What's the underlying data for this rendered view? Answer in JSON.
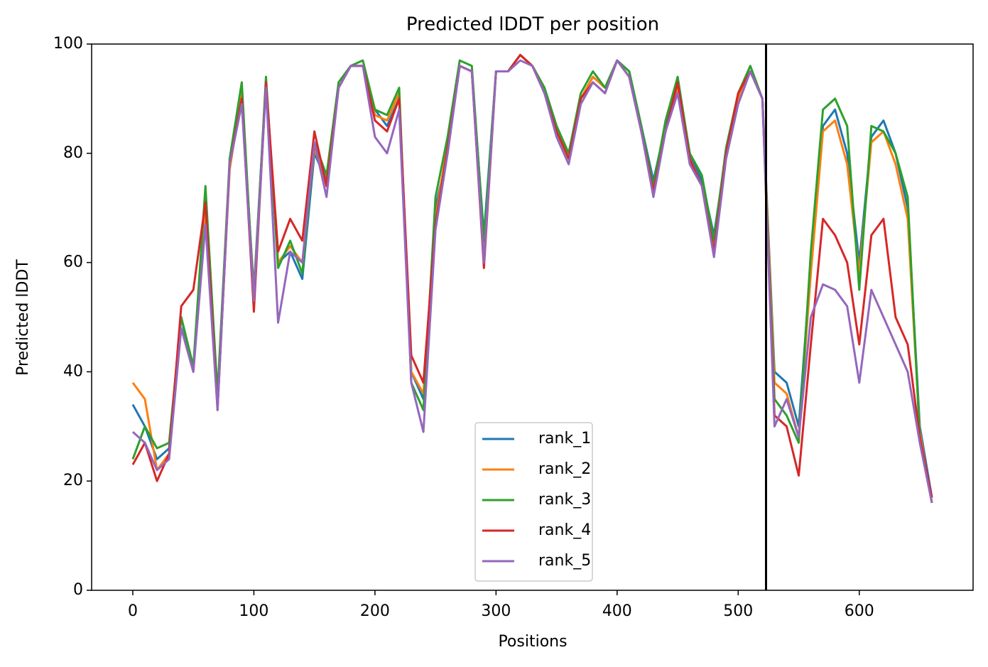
{
  "chart_data": {
    "type": "line",
    "title": "Predicted lDDT per position",
    "xlabel": "Positions",
    "ylabel": "Predicted lDDT",
    "x": [
      0,
      10,
      20,
      30,
      40,
      50,
      60,
      70,
      80,
      90,
      100,
      110,
      120,
      130,
      140,
      150,
      160,
      170,
      180,
      190,
      200,
      210,
      220,
      230,
      240,
      250,
      260,
      270,
      280,
      290,
      300,
      310,
      320,
      330,
      340,
      350,
      360,
      370,
      380,
      390,
      400,
      410,
      420,
      430,
      440,
      450,
      460,
      470,
      480,
      490,
      500,
      510,
      520,
      530,
      540,
      550,
      560,
      570,
      580,
      590,
      600,
      610,
      620,
      630,
      640,
      650,
      660
    ],
    "series": [
      {
        "name": "rank_1",
        "color": "#1f77b4",
        "values": [
          34,
          30,
          24,
          26,
          50,
          40,
          72,
          35,
          78,
          90,
          55,
          93,
          60,
          62,
          57,
          80,
          75,
          92,
          96,
          96,
          88,
          85,
          90,
          40,
          35,
          70,
          80,
          96,
          95,
          65,
          95,
          95,
          98,
          96,
          92,
          85,
          80,
          90,
          94,
          92,
          97,
          95,
          85,
          75,
          85,
          93,
          80,
          75,
          65,
          80,
          90,
          95,
          90,
          40,
          38,
          30,
          60,
          85,
          88,
          80,
          60,
          83,
          86,
          80,
          70,
          30,
          17
        ]
      },
      {
        "name": "rank_2",
        "color": "#ff7f0e",
        "values": [
          38,
          35,
          22,
          25,
          48,
          40,
          70,
          34,
          77,
          91,
          54,
          93,
          60,
          63,
          60,
          81,
          74,
          93,
          96,
          96,
          87,
          86,
          91,
          40,
          36,
          68,
          82,
          96,
          95,
          63,
          95,
          95,
          98,
          96,
          92,
          84,
          80,
          90,
          94,
          92,
          97,
          94,
          84,
          74,
          84,
          92,
          79,
          74,
          63,
          80,
          90,
          95,
          90,
          38,
          36,
          28,
          58,
          84,
          86,
          78,
          58,
          82,
          84,
          78,
          68,
          29,
          16
        ]
      },
      {
        "name": "rank_3",
        "color": "#2ca02c",
        "values": [
          24,
          30,
          26,
          27,
          50,
          41,
          74,
          36,
          79,
          93,
          53,
          94,
          59,
          64,
          58,
          82,
          76,
          93,
          96,
          97,
          88,
          87,
          92,
          38,
          33,
          72,
          83,
          97,
          96,
          64,
          95,
          95,
          98,
          96,
          92,
          85,
          80,
          91,
          95,
          92,
          97,
          95,
          85,
          74,
          86,
          94,
          80,
          76,
          64,
          81,
          91,
          96,
          90,
          35,
          32,
          27,
          62,
          88,
          90,
          85,
          55,
          85,
          84,
          80,
          72,
          28,
          16
        ]
      },
      {
        "name": "rank_4",
        "color": "#d62728",
        "values": [
          23,
          27,
          20,
          25,
          52,
          55,
          71,
          33,
          78,
          90,
          51,
          93,
          62,
          68,
          64,
          84,
          74,
          92,
          96,
          96,
          86,
          84,
          90,
          43,
          38,
          67,
          81,
          96,
          95,
          59,
          95,
          95,
          98,
          96,
          91,
          84,
          79,
          90,
          93,
          91,
          97,
          94,
          84,
          73,
          84,
          93,
          79,
          74,
          62,
          80,
          91,
          95,
          90,
          32,
          30,
          21,
          45,
          68,
          65,
          60,
          45,
          65,
          68,
          50,
          45,
          28,
          17
        ]
      },
      {
        "name": "rank_5",
        "color": "#9467bd",
        "values": [
          29,
          27,
          22,
          24,
          48,
          40,
          67,
          33,
          78,
          89,
          53,
          92,
          49,
          62,
          60,
          82,
          72,
          92,
          96,
          96,
          83,
          80,
          88,
          38,
          29,
          66,
          80,
          96,
          95,
          60,
          95,
          95,
          97,
          96,
          91,
          83,
          78,
          89,
          93,
          91,
          97,
          94,
          84,
          72,
          84,
          91,
          78,
          74,
          61,
          79,
          89,
          95,
          90,
          30,
          35,
          28,
          50,
          56,
          55,
          52,
          38,
          55,
          50,
          45,
          40,
          27,
          16
        ]
      }
    ],
    "vline": 523,
    "xlim": [
      -34,
      694
    ],
    "ylim": [
      0,
      100
    ],
    "xticks": [
      0,
      100,
      200,
      300,
      400,
      500,
      600
    ],
    "yticks": [
      0,
      20,
      40,
      60,
      80,
      100
    ],
    "legend": "lower center",
    "grid": false
  }
}
